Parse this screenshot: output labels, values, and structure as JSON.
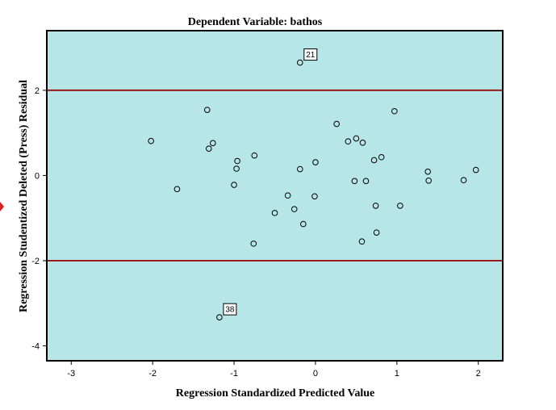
{
  "chart_data": {
    "type": "scatter",
    "title": "Dependent Variable: bathos",
    "xlabel": "Regression Standardized Predicted Value",
    "ylabel": "Regression Studentized Deleted (Press) Residual",
    "xlim": [
      -3.3,
      2.3
    ],
    "ylim": [
      -4.35,
      3.4
    ],
    "xticks": [
      -3,
      -2,
      -1,
      0,
      1,
      2
    ],
    "yticks": [
      2,
      0,
      -2,
      -4
    ],
    "reference_lines_y": [
      2,
      -2
    ],
    "colors": {
      "plot_background": "#b6e6e8",
      "reference_line": "#9a1a1a",
      "marker": "#000000"
    },
    "points": [
      {
        "x": -2.02,
        "y": 0.81
      },
      {
        "x": -1.7,
        "y": -0.32
      },
      {
        "x": -1.33,
        "y": 1.54
      },
      {
        "x": -1.31,
        "y": 0.63
      },
      {
        "x": -1.26,
        "y": 0.76
      },
      {
        "x": -1.18,
        "y": -3.33,
        "label": "38"
      },
      {
        "x": -0.96,
        "y": 0.34
      },
      {
        "x": -0.97,
        "y": 0.16
      },
      {
        "x": -1.0,
        "y": -0.22
      },
      {
        "x": -0.75,
        "y": 0.47
      },
      {
        "x": -0.76,
        "y": -1.6
      },
      {
        "x": -0.5,
        "y": -0.88
      },
      {
        "x": -0.34,
        "y": -0.47
      },
      {
        "x": -0.26,
        "y": -0.79
      },
      {
        "x": -0.19,
        "y": 2.65,
        "label": "21"
      },
      {
        "x": -0.19,
        "y": 0.15
      },
      {
        "x": -0.15,
        "y": -1.14
      },
      {
        "x": 0.0,
        "y": 0.31
      },
      {
        "x": -0.01,
        "y": -0.49
      },
      {
        "x": 0.26,
        "y": 1.21
      },
      {
        "x": 0.4,
        "y": 0.8
      },
      {
        "x": 0.5,
        "y": 0.87
      },
      {
        "x": 0.48,
        "y": -0.13
      },
      {
        "x": 0.58,
        "y": 0.77
      },
      {
        "x": 0.62,
        "y": -0.13
      },
      {
        "x": 0.57,
        "y": -1.55
      },
      {
        "x": 0.72,
        "y": 0.36
      },
      {
        "x": 0.81,
        "y": 0.43
      },
      {
        "x": 0.74,
        "y": -0.71
      },
      {
        "x": 0.75,
        "y": -1.34
      },
      {
        "x": 0.97,
        "y": 1.51
      },
      {
        "x": 1.04,
        "y": -0.71
      },
      {
        "x": 1.38,
        "y": 0.09
      },
      {
        "x": 1.39,
        "y": -0.12
      },
      {
        "x": 1.82,
        "y": -0.11
      },
      {
        "x": 1.97,
        "y": 0.13
      }
    ]
  }
}
